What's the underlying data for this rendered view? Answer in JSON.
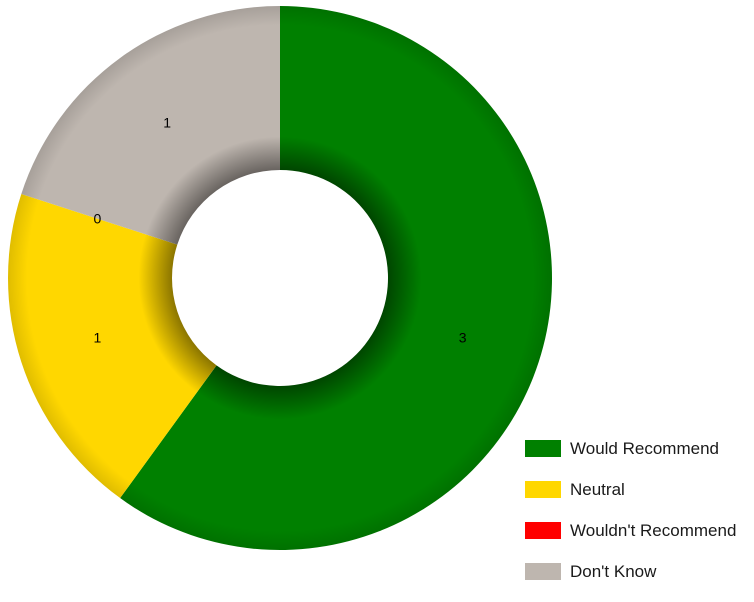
{
  "chart_data": {
    "type": "pie",
    "variant": "donut",
    "slices": [
      {
        "label": "Would Recommend",
        "value": 3,
        "color": "#008000"
      },
      {
        "label": "Neutral",
        "value": 1,
        "color": "#FFD700"
      },
      {
        "label": "Wouldn't Recommend",
        "value": 0,
        "color": "#FF0000"
      },
      {
        "label": "Don't Know",
        "value": 1,
        "color": "#BEB6AF"
      }
    ],
    "legend_position": "bottom-right"
  }
}
